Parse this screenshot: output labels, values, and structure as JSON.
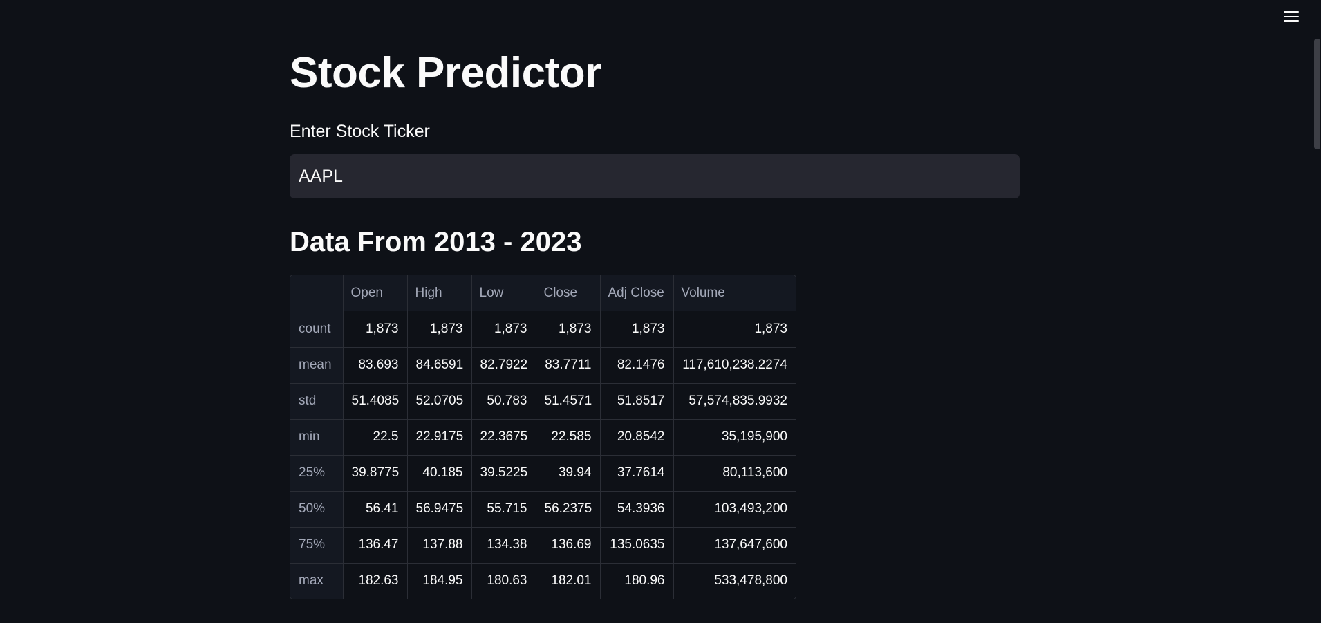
{
  "header": {
    "menu_icon": "hamburger-menu-icon"
  },
  "page": {
    "title": "Stock Predictor"
  },
  "ticker_input": {
    "label": "Enter Stock Ticker",
    "value": "AAPL"
  },
  "section": {
    "heading": "Data From 2013 - 2023"
  },
  "table": {
    "columns": [
      "",
      "Open",
      "High",
      "Low",
      "Close",
      "Adj Close",
      "Volume"
    ],
    "rows": [
      {
        "label": "count",
        "cells": [
          "1,873",
          "1,873",
          "1,873",
          "1,873",
          "1,873",
          "1,873"
        ]
      },
      {
        "label": "mean",
        "cells": [
          "83.693",
          "84.6591",
          "82.7922",
          "83.7711",
          "82.1476",
          "117,610,238.2274"
        ]
      },
      {
        "label": "std",
        "cells": [
          "51.4085",
          "52.0705",
          "50.783",
          "51.4571",
          "51.8517",
          "57,574,835.9932"
        ]
      },
      {
        "label": "min",
        "cells": [
          "22.5",
          "22.9175",
          "22.3675",
          "22.585",
          "20.8542",
          "35,195,900"
        ]
      },
      {
        "label": "25%",
        "cells": [
          "39.8775",
          "40.185",
          "39.5225",
          "39.94",
          "37.7614",
          "80,113,600"
        ]
      },
      {
        "label": "50%",
        "cells": [
          "56.41",
          "56.9475",
          "55.715",
          "56.2375",
          "54.3936",
          "103,493,200"
        ]
      },
      {
        "label": "75%",
        "cells": [
          "136.47",
          "137.88",
          "134.38",
          "136.69",
          "135.0635",
          "137,647,600"
        ]
      },
      {
        "label": "max",
        "cells": [
          "182.63",
          "184.95",
          "180.63",
          "182.01",
          "180.96",
          "533,478,800"
        ]
      }
    ]
  },
  "colors": {
    "background": "#0e1117",
    "input_background": "#262730",
    "text": "#fafafa",
    "muted_text": "#a3a8b8",
    "border": "#2b2e36"
  }
}
